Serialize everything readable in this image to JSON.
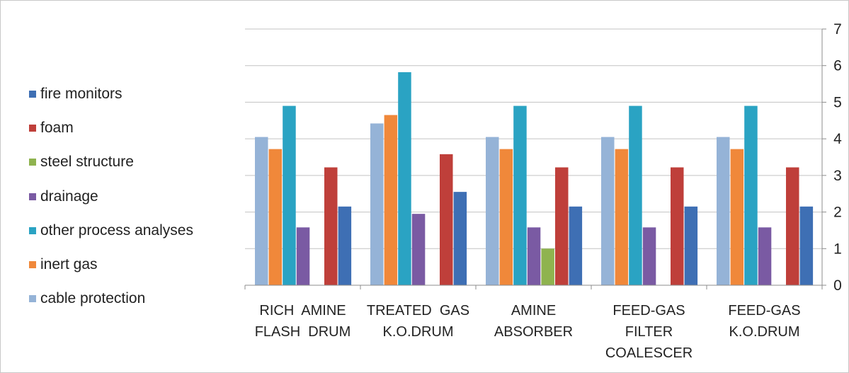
{
  "chart_data": {
    "type": "bar",
    "categories": [
      [
        "RICH  AMINE",
        "FLASH  DRUM"
      ],
      [
        "TREATED  GAS",
        "K.O.DRUM"
      ],
      [
        "AMINE",
        "ABSORBER"
      ],
      [
        "FEED-GAS",
        "FILTER",
        "COALESCER"
      ],
      [
        "FEED-GAS",
        "K.O.DRUM"
      ]
    ],
    "series": [
      {
        "name": "cable protection",
        "color": "#95b3d7",
        "values": [
          4.05,
          4.42,
          4.05,
          4.05,
          4.05
        ]
      },
      {
        "name": "inert gas",
        "color": "#f0883a",
        "values": [
          3.72,
          4.65,
          3.72,
          3.72,
          3.72
        ]
      },
      {
        "name": "other process analyses",
        "color": "#2aa3c3",
        "values": [
          4.9,
          5.82,
          4.9,
          4.9,
          4.9
        ]
      },
      {
        "name": "drainage",
        "color": "#7a5aa3",
        "values": [
          1.58,
          1.95,
          1.58,
          1.58,
          1.58
        ]
      },
      {
        "name": "steel structure",
        "color": "#8fb34f",
        "values": [
          0,
          0,
          1.0,
          0,
          0
        ]
      },
      {
        "name": "foam",
        "color": "#bf3f3a",
        "values": [
          3.22,
          3.58,
          3.22,
          3.22,
          3.22
        ]
      },
      {
        "name": "fire monitors",
        "color": "#3e6fb4",
        "values": [
          2.15,
          2.55,
          2.15,
          2.15,
          2.15
        ]
      }
    ],
    "legend_order": [
      "fire monitors",
      "foam",
      "steel structure",
      "drainage",
      "other process analyses",
      "inert gas",
      "cable protection"
    ],
    "yticks": [
      "0",
      "1",
      "2",
      "3",
      "4",
      "5",
      "6",
      "7"
    ],
    "ylim": [
      0,
      7
    ],
    "axis_position": "right",
    "grid": true,
    "legend_position": "left"
  }
}
